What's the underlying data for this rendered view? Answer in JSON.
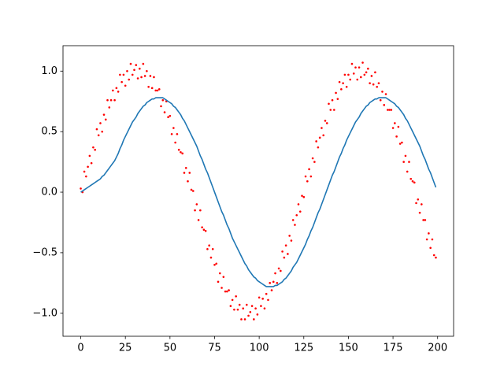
{
  "chart_data": {
    "type": "line",
    "x": [
      0,
      1,
      2,
      3,
      4,
      5,
      6,
      7,
      8,
      9,
      10,
      11,
      12,
      13,
      14,
      15,
      16,
      17,
      18,
      19,
      20,
      21,
      22,
      23,
      24,
      25,
      26,
      27,
      28,
      29,
      30,
      31,
      32,
      33,
      34,
      35,
      36,
      37,
      38,
      39,
      40,
      41,
      42,
      43,
      44,
      45,
      46,
      47,
      48,
      49,
      50,
      51,
      52,
      53,
      54,
      55,
      56,
      57,
      58,
      59,
      60,
      61,
      62,
      63,
      64,
      65,
      66,
      67,
      68,
      69,
      70,
      71,
      72,
      73,
      74,
      75,
      76,
      77,
      78,
      79,
      80,
      81,
      82,
      83,
      84,
      85,
      86,
      87,
      88,
      89,
      90,
      91,
      92,
      93,
      94,
      95,
      96,
      97,
      98,
      99,
      100,
      101,
      102,
      103,
      104,
      105,
      106,
      107,
      108,
      109,
      110,
      111,
      112,
      113,
      114,
      115,
      116,
      117,
      118,
      119,
      120,
      121,
      122,
      123,
      124,
      125,
      126,
      127,
      128,
      129,
      130,
      131,
      132,
      133,
      134,
      135,
      136,
      137,
      138,
      139,
      140,
      141,
      142,
      143,
      144,
      145,
      146,
      147,
      148,
      149,
      150,
      151,
      152,
      153,
      154,
      155,
      156,
      157,
      158,
      159,
      160,
      161,
      162,
      163,
      164,
      165,
      166,
      167,
      168,
      169,
      170,
      171,
      172,
      173,
      174,
      175,
      176,
      177,
      178,
      179,
      180,
      181,
      182,
      183,
      184,
      185,
      186,
      187,
      188,
      189,
      190,
      191,
      192,
      193,
      194,
      195,
      196,
      197,
      198,
      199
    ],
    "series": [
      {
        "type": "scatter",
        "color": "#ff0000",
        "values": [
          0.03,
          0.0,
          0.17,
          0.13,
          0.21,
          0.3,
          0.24,
          0.37,
          0.35,
          0.52,
          0.47,
          0.57,
          0.5,
          0.64,
          0.6,
          0.76,
          0.7,
          0.76,
          0.84,
          0.76,
          0.86,
          0.83,
          0.97,
          0.91,
          0.97,
          0.88,
          1.0,
          0.93,
          1.06,
          0.97,
          1.01,
          1.05,
          0.94,
          1.02,
          0.95,
          1.06,
          0.96,
          1.0,
          0.87,
          0.96,
          0.86,
          0.95,
          0.84,
          0.84,
          0.85,
          0.71,
          0.76,
          0.66,
          0.75,
          0.62,
          0.63,
          0.48,
          0.53,
          0.41,
          0.48,
          0.35,
          0.33,
          0.32,
          0.16,
          0.2,
          0.09,
          0.16,
          0.02,
          0.01,
          -0.15,
          -0.1,
          -0.23,
          -0.15,
          -0.29,
          -0.31,
          -0.32,
          -0.47,
          -0.44,
          -0.54,
          -0.47,
          -0.6,
          -0.59,
          -0.74,
          -0.67,
          -0.79,
          -0.7,
          -0.82,
          -0.82,
          -0.81,
          -0.94,
          -0.89,
          -0.97,
          -0.86,
          -0.97,
          -0.93,
          -1.05,
          -0.96,
          -1.05,
          -0.93,
          -1.02,
          -0.99,
          -0.94,
          -1.05,
          -0.96,
          -1.01,
          -0.87,
          -0.94,
          -0.88,
          -0.96,
          -0.84,
          -0.89,
          -0.75,
          -0.81,
          -0.74,
          -0.67,
          -0.75,
          -0.63,
          -0.65,
          -0.49,
          -0.54,
          -0.44,
          -0.51,
          -0.36,
          -0.4,
          -0.23,
          -0.27,
          -0.19,
          -0.1,
          -0.16,
          -0.03,
          -0.04,
          0.13,
          0.09,
          0.19,
          0.13,
          0.28,
          0.25,
          0.42,
          0.37,
          0.45,
          0.53,
          0.47,
          0.59,
          0.57,
          0.73,
          0.68,
          0.76,
          0.68,
          0.82,
          0.77,
          0.91,
          0.85,
          0.9,
          0.97,
          0.87,
          0.97,
          0.93,
          1.06,
          0.98,
          1.03,
          0.93,
          1.03,
          0.95,
          1.07,
          0.97,
          0.99,
          1.02,
          0.9,
          0.96,
          0.89,
          0.99,
          0.87,
          0.9,
          0.76,
          0.83,
          0.72,
          0.81,
          0.68,
          0.68,
          0.68,
          0.53,
          0.57,
          0.46,
          0.54,
          0.4,
          0.41,
          0.25,
          0.3,
          0.17,
          0.25,
          0.11,
          0.09,
          0.08,
          -0.09,
          -0.06,
          -0.17,
          -0.1,
          -0.23,
          -0.23,
          -0.39,
          -0.34,
          -0.46,
          -0.39,
          -0.52,
          -0.54
        ]
      },
      {
        "type": "line",
        "color": "#1f77b4",
        "values": [
          0.0,
          0.01,
          0.02,
          0.03,
          0.04,
          0.05,
          0.06,
          0.07,
          0.08,
          0.09,
          0.1,
          0.11,
          0.13,
          0.14,
          0.16,
          0.18,
          0.2,
          0.22,
          0.24,
          0.26,
          0.29,
          0.32,
          0.36,
          0.39,
          0.43,
          0.46,
          0.49,
          0.52,
          0.55,
          0.58,
          0.6,
          0.62,
          0.65,
          0.67,
          0.69,
          0.71,
          0.72,
          0.74,
          0.75,
          0.76,
          0.77,
          0.77,
          0.78,
          0.78,
          0.78,
          0.78,
          0.78,
          0.77,
          0.76,
          0.75,
          0.74,
          0.73,
          0.71,
          0.7,
          0.68,
          0.66,
          0.64,
          0.61,
          0.59,
          0.56,
          0.53,
          0.5,
          0.47,
          0.44,
          0.41,
          0.38,
          0.34,
          0.3,
          0.27,
          0.23,
          0.19,
          0.16,
          0.12,
          0.08,
          0.04,
          0.0,
          -0.04,
          -0.08,
          -0.12,
          -0.16,
          -0.19,
          -0.23,
          -0.27,
          -0.3,
          -0.34,
          -0.38,
          -0.41,
          -0.44,
          -0.47,
          -0.5,
          -0.53,
          -0.56,
          -0.59,
          -0.61,
          -0.64,
          -0.66,
          -0.68,
          -0.7,
          -0.71,
          -0.73,
          -0.74,
          -0.75,
          -0.76,
          -0.77,
          -0.78,
          -0.78,
          -0.78,
          -0.78,
          -0.78,
          -0.77,
          -0.77,
          -0.76,
          -0.75,
          -0.74,
          -0.72,
          -0.71,
          -0.69,
          -0.67,
          -0.65,
          -0.62,
          -0.6,
          -0.58,
          -0.55,
          -0.52,
          -0.49,
          -0.46,
          -0.43,
          -0.39,
          -0.36,
          -0.32,
          -0.29,
          -0.25,
          -0.21,
          -0.17,
          -0.14,
          -0.1,
          -0.06,
          -0.02,
          0.02,
          0.06,
          0.1,
          0.14,
          0.17,
          0.21,
          0.25,
          0.29,
          0.32,
          0.36,
          0.39,
          0.43,
          0.46,
          0.49,
          0.52,
          0.55,
          0.58,
          0.6,
          0.62,
          0.65,
          0.67,
          0.69,
          0.71,
          0.72,
          0.74,
          0.75,
          0.76,
          0.77,
          0.77,
          0.78,
          0.78,
          0.78,
          0.78,
          0.78,
          0.77,
          0.76,
          0.75,
          0.74,
          0.73,
          0.71,
          0.7,
          0.68,
          0.66,
          0.64,
          0.61,
          0.59,
          0.56,
          0.53,
          0.5,
          0.47,
          0.44,
          0.41,
          0.38,
          0.34,
          0.3,
          0.27,
          0.23,
          0.19,
          0.16,
          0.12,
          0.08,
          0.04
        ]
      }
    ],
    "xlim": [
      -9.95,
      208.95
    ],
    "xticks": [
      0,
      25,
      50,
      75,
      100,
      125,
      150,
      175,
      200
    ],
    "ylim": [
      -1.19,
      1.21
    ],
    "yticks": [
      {
        "value": -1,
        "label": "−1.0"
      },
      {
        "value": -0.5,
        "label": "−0.5"
      },
      {
        "value": 0,
        "label": "0.0"
      },
      0.5,
      {
        "value": 1,
        "label": "1.0"
      }
    ],
    "grid": false
  }
}
